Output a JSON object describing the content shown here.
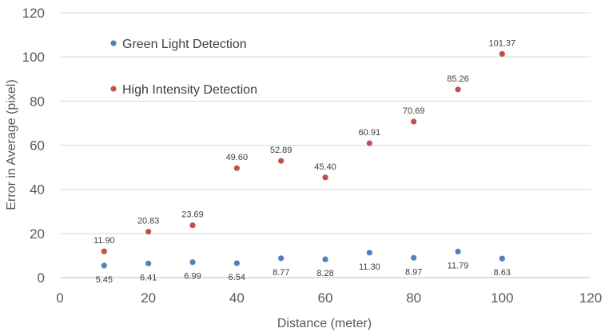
{
  "chart_data": {
    "type": "scatter",
    "title": "",
    "xlabel": "Distance (meter)",
    "ylabel": "Error in Average (pixel)",
    "xlim": [
      0,
      120
    ],
    "ylim": [
      0,
      120
    ],
    "xticks": [
      0,
      20,
      40,
      60,
      80,
      100,
      120
    ],
    "yticks": [
      0,
      20,
      40,
      60,
      80,
      100,
      120
    ],
    "grid": "horizontal",
    "legend_position": "top-left",
    "series": [
      {
        "name": "Green Light Detection",
        "color": "#4f81bd",
        "label_position": "below",
        "points": [
          {
            "x": 10,
            "y": 5.45,
            "label": "5.45"
          },
          {
            "x": 20,
            "y": 6.41,
            "label": "6.41"
          },
          {
            "x": 30,
            "y": 6.99,
            "label": "6.99"
          },
          {
            "x": 40,
            "y": 6.54,
            "label": "6.54"
          },
          {
            "x": 50,
            "y": 8.77,
            "label": "8.77"
          },
          {
            "x": 60,
            "y": 8.28,
            "label": "8.28"
          },
          {
            "x": 70,
            "y": 11.3,
            "label": "11.30"
          },
          {
            "x": 80,
            "y": 8.97,
            "label": "8.97"
          },
          {
            "x": 90,
            "y": 11.79,
            "label": "11.79"
          },
          {
            "x": 100,
            "y": 8.63,
            "label": "8.63"
          }
        ]
      },
      {
        "name": "High Intensity Detection",
        "color": "#c0504d",
        "label_position": "above",
        "points": [
          {
            "x": 10,
            "y": 11.9,
            "label": "11.90"
          },
          {
            "x": 20,
            "y": 20.83,
            "label": "20.83"
          },
          {
            "x": 30,
            "y": 23.69,
            "label": "23.69"
          },
          {
            "x": 40,
            "y": 49.6,
            "label": "49.60"
          },
          {
            "x": 50,
            "y": 52.89,
            "label": "52.89"
          },
          {
            "x": 60,
            "y": 45.4,
            "label": "45.40"
          },
          {
            "x": 70,
            "y": 60.91,
            "label": "60.91"
          },
          {
            "x": 80,
            "y": 70.69,
            "label": "70.69"
          },
          {
            "x": 90,
            "y": 85.26,
            "label": "85.26"
          },
          {
            "x": 100,
            "y": 101.37,
            "label": "101.37"
          }
        ]
      }
    ]
  }
}
